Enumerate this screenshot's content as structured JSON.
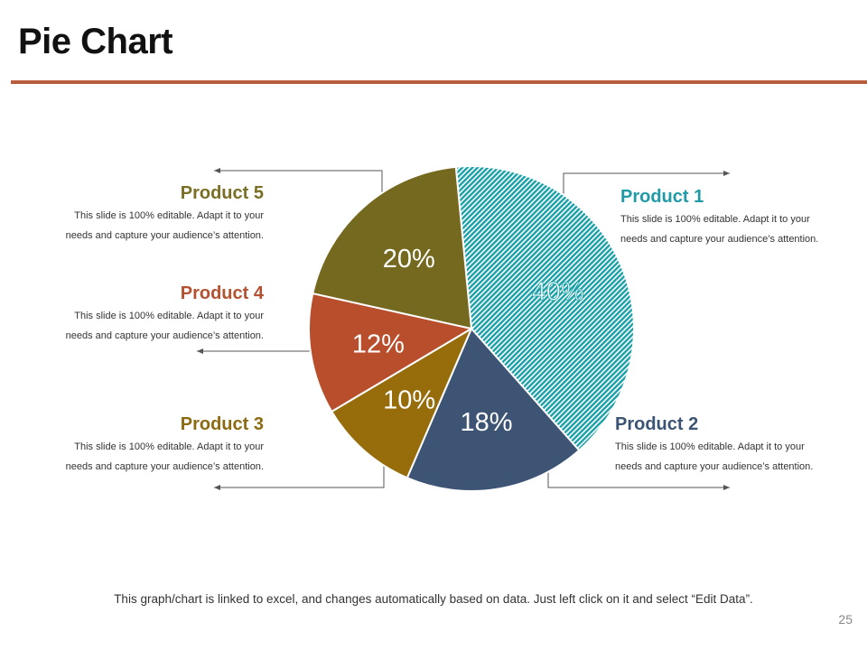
{
  "page": {
    "title": "Pie Chart",
    "footer_note": "This graph/chart is linked to excel, and changes automatically  based on data. Just left click on it and select “Edit Data”.",
    "page_number": "25"
  },
  "colors": {
    "title_rule": "#b85c3c",
    "text": "#111111"
  },
  "products": [
    {
      "id": "p1",
      "name": "Product 1",
      "color": "#1f9aa6",
      "desc_line1": "This slide is 100% editable. Adapt it to your",
      "desc_line2": "needs and capture your audience’s attention."
    },
    {
      "id": "p2",
      "name": "Product 2",
      "color": "#3c5474",
      "desc_line1": "This slide is 100% editable. Adapt it to your",
      "desc_line2": "needs and capture your audience’s attention."
    },
    {
      "id": "p3",
      "name": "Product 3",
      "color": "#8c6a12",
      "desc_line1": "This slide is 100% editable. Adapt it to your",
      "desc_line2": "needs and capture your audience’s attention."
    },
    {
      "id": "p4",
      "name": "Product 4",
      "color": "#b4522f",
      "desc_line1": "This slide is 100% editable. Adapt it to your",
      "desc_line2": "needs and capture your audience’s attention."
    },
    {
      "id": "p5",
      "name": "Product 5",
      "color": "#7a6e24",
      "desc_line1": "This slide is 100% editable. Adapt it to your",
      "desc_line2": "needs and capture your audience’s attention."
    }
  ],
  "chart_data": {
    "type": "pie",
    "title": "Pie Chart",
    "categories": [
      "Product 1",
      "Product 2",
      "Product 3",
      "Product 4",
      "Product 5"
    ],
    "values": [
      40,
      18,
      10,
      12,
      20
    ],
    "labels": [
      "40%",
      "18%",
      "10%",
      "12%",
      "20%"
    ],
    "unit": "%",
    "colors": [
      "#1aa0a8",
      "#3d5475",
      "#976c0a",
      "#b84e2c",
      "#75691f"
    ],
    "patterns": [
      "diagonal-hatch",
      "solid",
      "solid",
      "solid",
      "solid"
    ],
    "legend": "callouts"
  }
}
